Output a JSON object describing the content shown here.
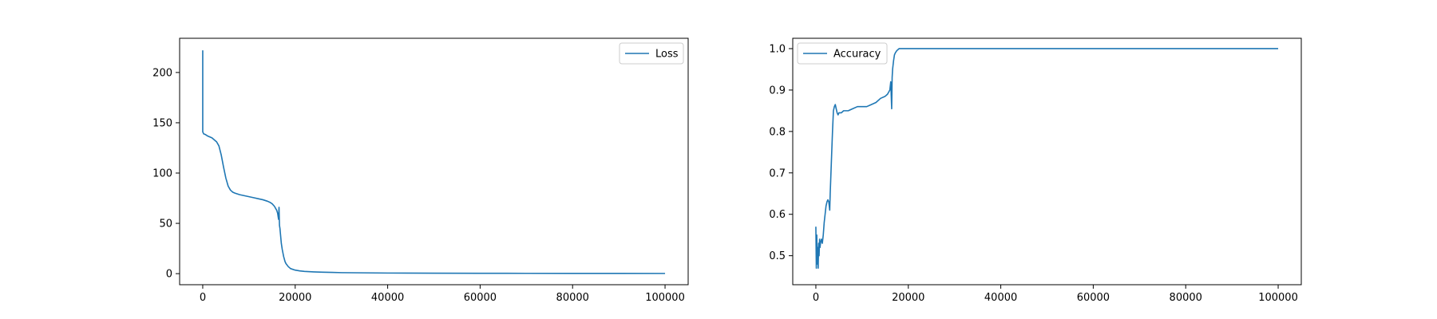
{
  "chart_data": [
    {
      "type": "line",
      "title": "",
      "xlabel": "",
      "ylabel": "",
      "xlim": [
        -5000,
        105000
      ],
      "ylim": [
        -11,
        234
      ],
      "xticks": [
        0,
        20000,
        40000,
        60000,
        80000,
        100000
      ],
      "yticks": [
        0,
        50,
        100,
        150,
        200
      ],
      "grid": false,
      "legend_position": "upper right",
      "series": [
        {
          "name": "Loss",
          "color": "#1f77b4",
          "x": [
            0,
            0,
            200,
            500,
            1000,
            2000,
            3000,
            3500,
            4000,
            4500,
            5000,
            5500,
            6000,
            6500,
            7000,
            8000,
            9000,
            10000,
            11000,
            12000,
            13000,
            14000,
            14500,
            15000,
            15500,
            16000,
            16200,
            16400,
            16500,
            16600,
            16700,
            16800,
            17000,
            17200,
            17500,
            17800,
            18000,
            18500,
            19000,
            20000,
            21000,
            22000,
            24000,
            26000,
            28000,
            30000,
            35000,
            40000,
            50000,
            60000,
            70000,
            80000,
            90000,
            100000
          ],
          "y": [
            222,
            141,
            139,
            138.5,
            137,
            135,
            131,
            127,
            118,
            106,
            95,
            87,
            83,
            81,
            80,
            78.5,
            77.5,
            76.5,
            75.5,
            74.5,
            73.5,
            72,
            71,
            69.5,
            67,
            63,
            60,
            54,
            66,
            48,
            45,
            40,
            30,
            24,
            17,
            12,
            10,
            7,
            5,
            3.5,
            2.7,
            2.2,
            1.7,
            1.4,
            1.2,
            1.0,
            0.8,
            0.6,
            0.45,
            0.35,
            0.3,
            0.25,
            0.22,
            0.2
          ]
        }
      ]
    },
    {
      "type": "line",
      "title": "",
      "xlabel": "",
      "ylabel": "",
      "xlim": [
        -5000,
        105000
      ],
      "ylim": [
        0.43,
        1.025
      ],
      "xticks": [
        0,
        20000,
        40000,
        60000,
        80000,
        100000
      ],
      "yticks": [
        0.5,
        0.6,
        0.7,
        0.8,
        0.9,
        1.0
      ],
      "grid": false,
      "legend_position": "upper left",
      "series": [
        {
          "name": "Accuracy",
          "color": "#1f77b4",
          "x": [
            0,
            100,
            200,
            300,
            400,
            500,
            600,
            700,
            800,
            900,
            1000,
            1200,
            1400,
            1600,
            1800,
            2000,
            2200,
            2400,
            2600,
            2800,
            3000,
            3100,
            3200,
            3400,
            3600,
            3800,
            4000,
            4200,
            4400,
            4600,
            4800,
            5000,
            5500,
            6000,
            7000,
            8000,
            9000,
            10000,
            11000,
            12000,
            13000,
            14000,
            15000,
            15500,
            16000,
            16200,
            16400,
            16500,
            16600,
            16800,
            17000,
            17200,
            17500,
            18000,
            20000,
            40000,
            60000,
            80000,
            100000
          ],
          "y": [
            0.57,
            0.47,
            0.55,
            0.48,
            0.52,
            0.47,
            0.53,
            0.5,
            0.54,
            0.52,
            0.53,
            0.54,
            0.53,
            0.55,
            0.58,
            0.6,
            0.62,
            0.63,
            0.635,
            0.63,
            0.61,
            0.65,
            0.68,
            0.74,
            0.8,
            0.85,
            0.86,
            0.865,
            0.855,
            0.845,
            0.84,
            0.845,
            0.845,
            0.85,
            0.85,
            0.855,
            0.86,
            0.86,
            0.86,
            0.865,
            0.87,
            0.88,
            0.885,
            0.89,
            0.9,
            0.92,
            0.855,
            0.93,
            0.95,
            0.97,
            0.985,
            0.99,
            0.995,
            1.0,
            1.0,
            1.0,
            1.0,
            1.0,
            1.0
          ]
        }
      ]
    }
  ]
}
